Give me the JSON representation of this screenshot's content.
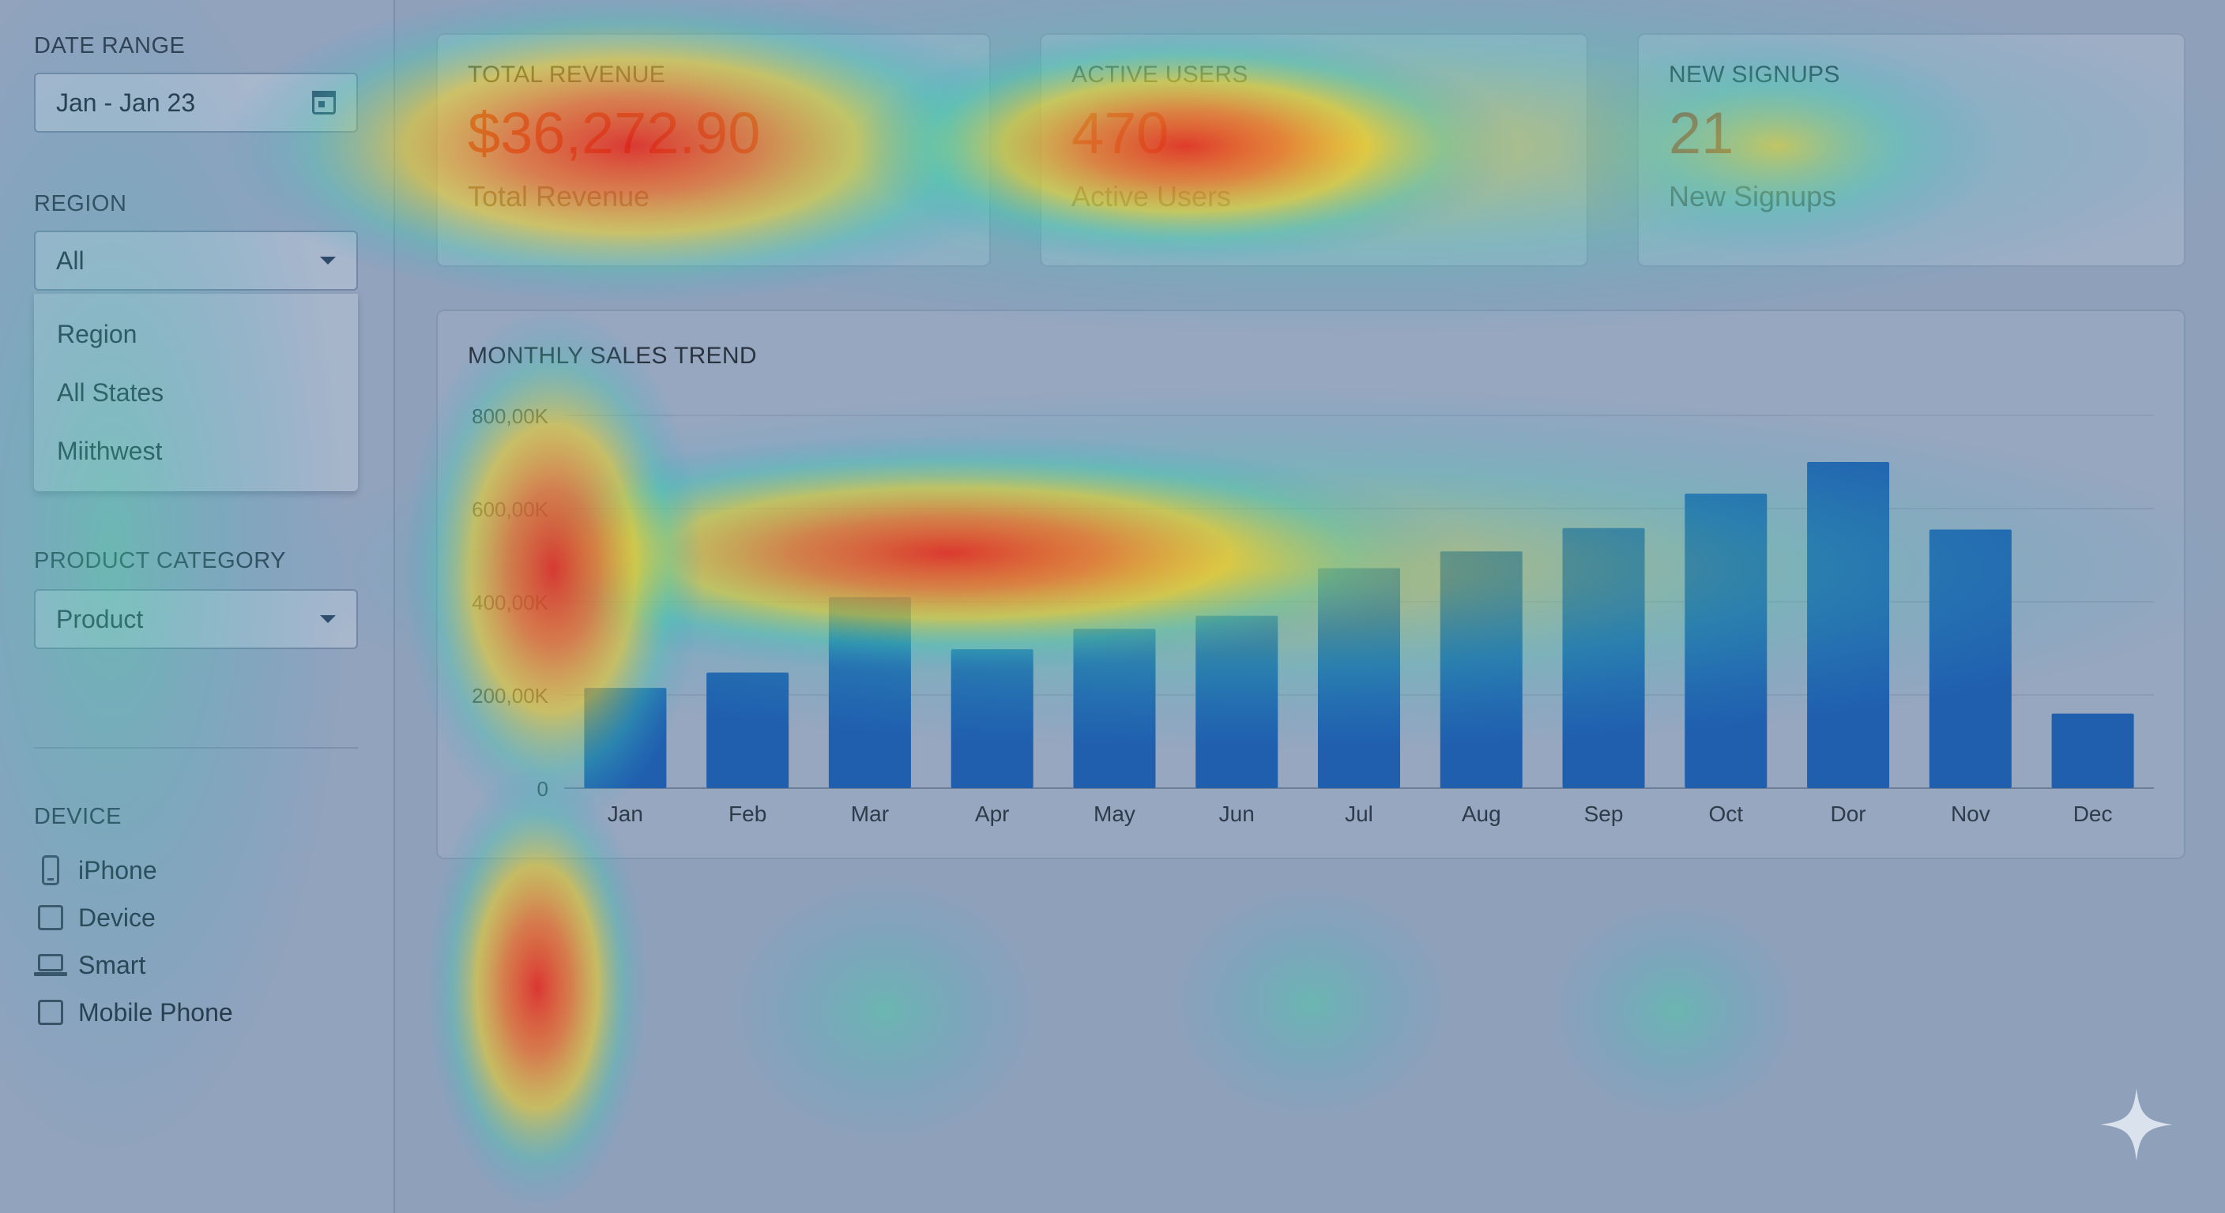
{
  "sidebar": {
    "date_range": {
      "label": "DATE RANGE",
      "value": "Jan - Jan 23",
      "icon": "calendar-icon"
    },
    "region": {
      "label": "REGION",
      "selected": "All",
      "options": [
        "Region",
        "All States",
        "Miithwest"
      ]
    },
    "product_category": {
      "label": "PRODUCT CATEGORY",
      "selected": "Product"
    },
    "device": {
      "label": "DEVICE",
      "items": [
        {
          "label": "iPhone",
          "icon": "phone-icon"
        },
        {
          "label": "Device",
          "icon": "checkbox"
        },
        {
          "label": "Smart",
          "icon": "laptop-icon"
        },
        {
          "label": "Mobile Phone",
          "icon": "checkbox"
        }
      ]
    }
  },
  "kpis": [
    {
      "title": "TOTAL REVENUE",
      "value": "$36,272.90",
      "subtitle": "Total Revenue"
    },
    {
      "title": "ACTIVE USERS",
      "value": "470",
      "subtitle": "Active Users"
    },
    {
      "title": "NEW SIGNUPS",
      "value": "21",
      "subtitle": "New Signups"
    }
  ],
  "colors": {
    "bar": "#1f5fae",
    "kpi_value": "#a8281e"
  },
  "chart_data": {
    "type": "bar",
    "title": "MONTHLY SALES TREND",
    "categories": [
      "Jan",
      "Feb",
      "Mar",
      "Apr",
      "May",
      "Jun",
      "Jul",
      "Aug",
      "Sep",
      "Oct",
      "Dor",
      "Nov",
      "Dec"
    ],
    "values": [
      215000,
      248000,
      410000,
      298000,
      342000,
      370000,
      472000,
      508000,
      558000,
      632000,
      700000,
      555000,
      160000
    ],
    "y_ticks": [
      0,
      200000,
      400000,
      600000,
      800000
    ],
    "y_tick_labels": [
      "0",
      "200,00K",
      "400,00K",
      "600,00K",
      "800,00K"
    ],
    "ylim": [
      0,
      800000
    ],
    "grid": true
  }
}
